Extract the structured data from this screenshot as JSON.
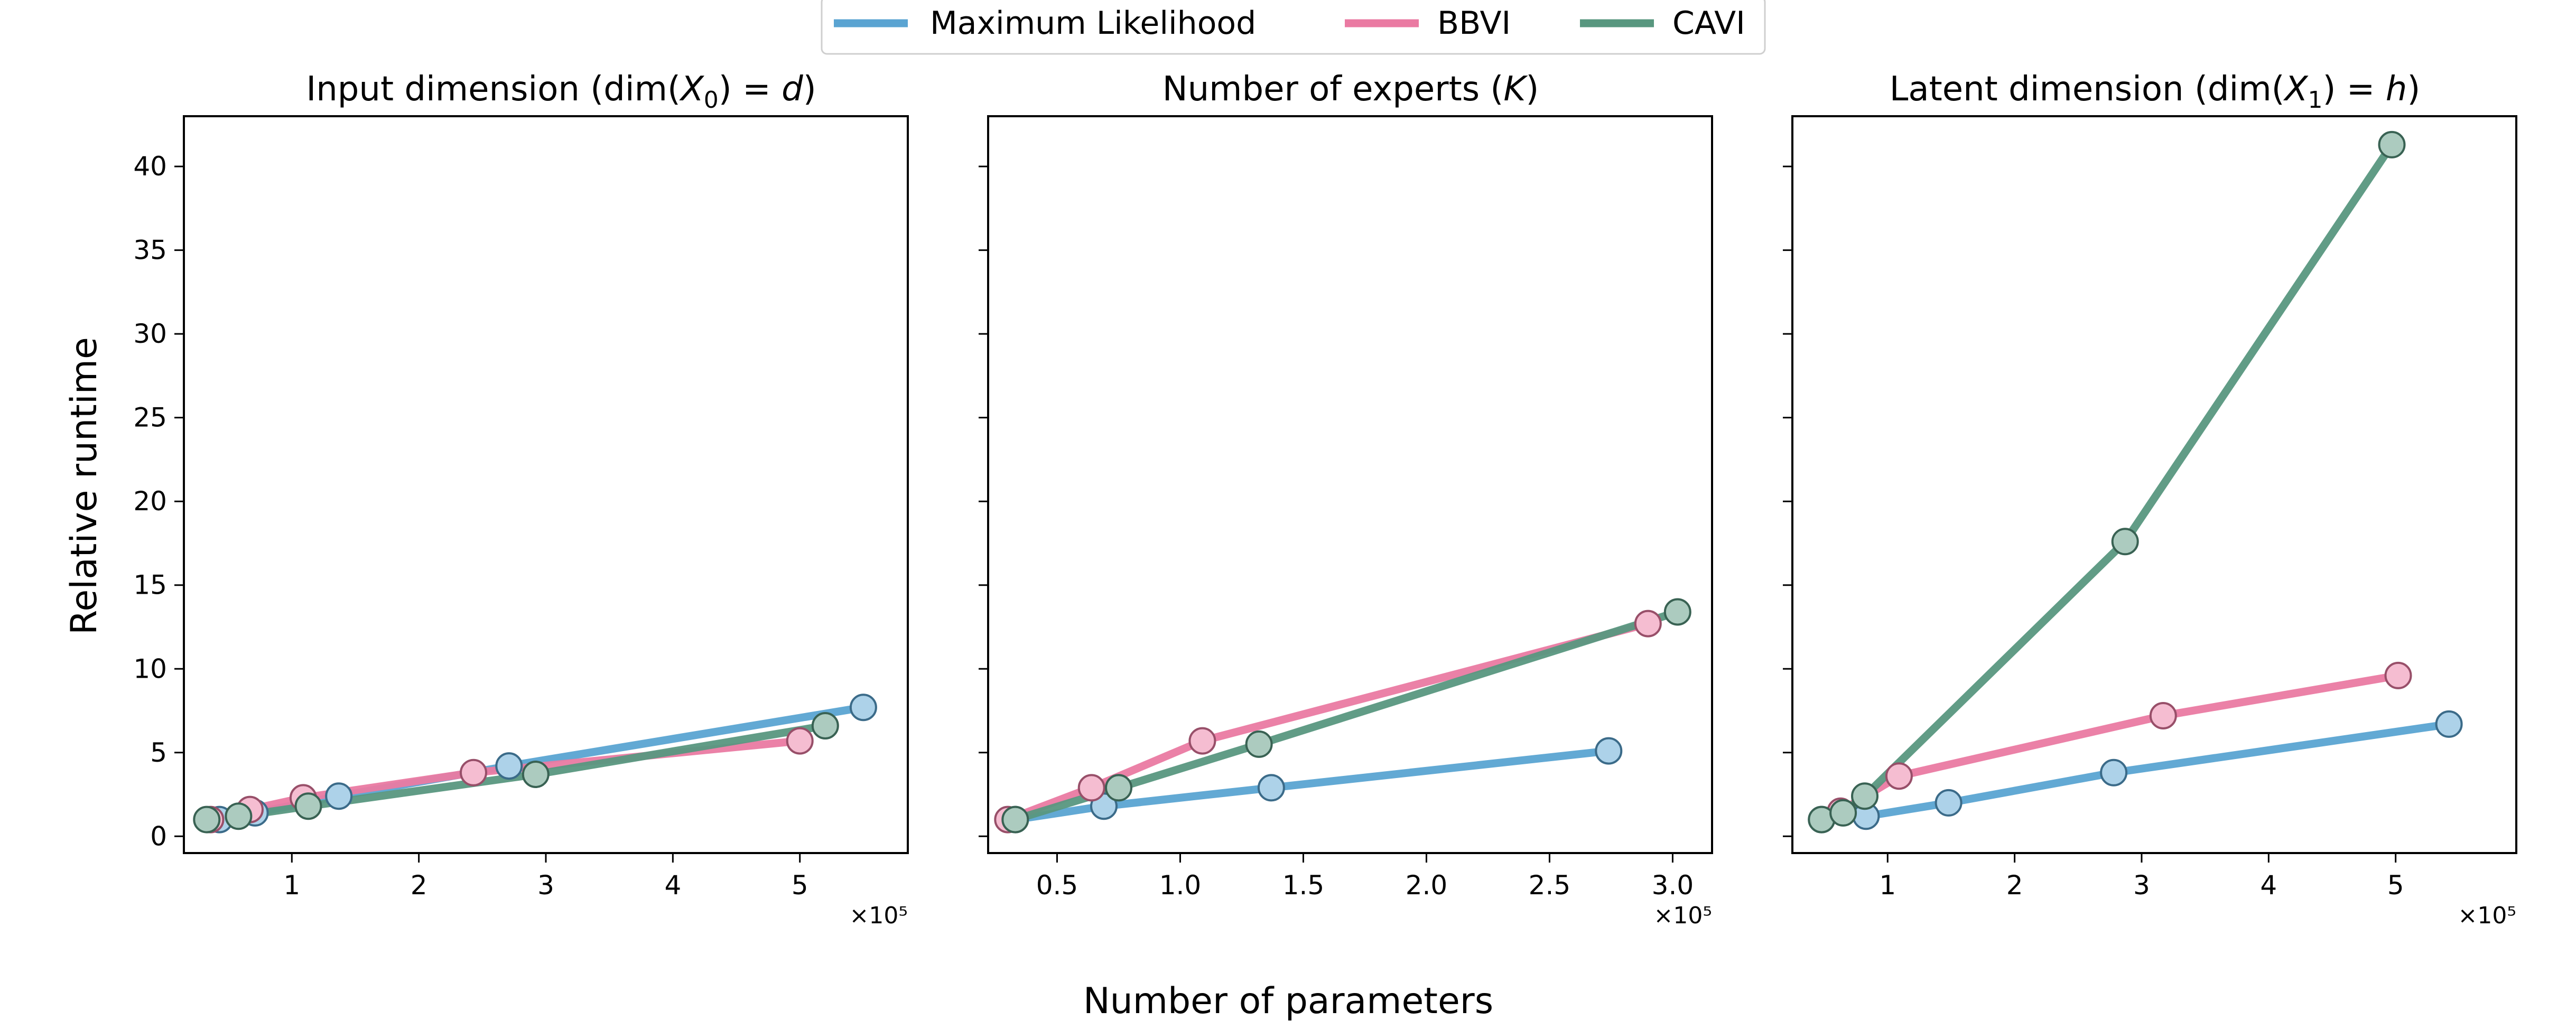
{
  "figure": {
    "ylabel": "Relative runtime",
    "xlabel": "Number of parameters",
    "legend_position": "top-center"
  },
  "legend": {
    "items": [
      {
        "label": "Maximum Likelihood",
        "color": "#5aa4d2"
      },
      {
        "label": "BBVI",
        "color": "#ea7aa2"
      },
      {
        "label": "CAVI",
        "color": "#58977f"
      }
    ]
  },
  "chart_data": [
    {
      "type": "line",
      "title_parts": {
        "prefix": "Input dimension (dim(",
        "sym": "X",
        "sub": "0",
        "suffix": ") = ",
        "var": "d",
        "end": ")"
      },
      "xlabel": "Number of parameters",
      "ylabel": "Relative runtime",
      "xlim": [
        0.15,
        5.85
      ],
      "ylim": [
        -1,
        43
      ],
      "x_ticks": [
        1,
        2,
        3,
        4,
        5
      ],
      "x_tick_labels": [
        "1",
        "2",
        "3",
        "4",
        "5"
      ],
      "y_ticks": [
        0,
        5,
        10,
        15,
        20,
        25,
        30,
        35,
        40
      ],
      "y_tick_labels": [
        "0",
        "5",
        "10",
        "15",
        "20",
        "25",
        "30",
        "35",
        "40"
      ],
      "x_offset_label": "×10⁵",
      "show_y_tick_labels": true,
      "series": [
        {
          "name": "Maximum Likelihood",
          "x": [
            0.43,
            0.71,
            1.37,
            2.71,
            5.5
          ],
          "y": [
            1.0,
            1.4,
            2.4,
            4.2,
            7.7
          ]
        },
        {
          "name": "BBVI",
          "x": [
            0.36,
            0.67,
            1.09,
            2.43,
            5.0
          ],
          "y": [
            1.0,
            1.6,
            2.3,
            3.8,
            5.7
          ]
        },
        {
          "name": "CAVI",
          "x": [
            0.33,
            0.58,
            1.13,
            2.92,
            5.2
          ],
          "y": [
            1.0,
            1.2,
            1.8,
            3.7,
            6.6
          ]
        }
      ]
    },
    {
      "type": "line",
      "title_parts": {
        "prefix": "Number of experts (",
        "sym": "",
        "sub": "",
        "suffix": "",
        "var": "K",
        "end": ")"
      },
      "xlabel": "Number of parameters",
      "ylabel": "Relative runtime",
      "xlim": [
        0.22,
        3.16
      ],
      "ylim": [
        -1,
        43
      ],
      "x_ticks": [
        0.5,
        1.0,
        1.5,
        2.0,
        2.5,
        3.0
      ],
      "x_tick_labels": [
        "0.5",
        "1.0",
        "1.5",
        "2.0",
        "2.5",
        "3.0"
      ],
      "y_ticks": [
        0,
        5,
        10,
        15,
        20,
        25,
        30,
        35,
        40
      ],
      "y_tick_labels": [
        "0",
        "5",
        "10",
        "15",
        "20",
        "25",
        "30",
        "35",
        "40"
      ],
      "x_offset_label": "×10⁵",
      "show_y_tick_labels": false,
      "series": [
        {
          "name": "Maximum Likelihood",
          "x": [
            0.33,
            0.69,
            1.37,
            2.74
          ],
          "y": [
            1.0,
            1.8,
            2.9,
            5.1
          ]
        },
        {
          "name": "BBVI",
          "x": [
            0.3,
            0.64,
            1.09,
            2.9
          ],
          "y": [
            1.0,
            2.9,
            5.7,
            12.7
          ]
        },
        {
          "name": "CAVI",
          "x": [
            0.33,
            0.75,
            1.32,
            3.02
          ],
          "y": [
            1.0,
            2.9,
            5.5,
            13.4
          ]
        }
      ]
    },
    {
      "type": "line",
      "title_parts": {
        "prefix": "Latent dimension (dim(",
        "sym": "X",
        "sub": "1",
        "suffix": ") = ",
        "var": "h",
        "end": ")"
      },
      "xlabel": "Number of parameters",
      "ylabel": "Relative runtime",
      "xlim": [
        0.25,
        5.95
      ],
      "ylim": [
        -1,
        43
      ],
      "x_ticks": [
        1,
        2,
        3,
        4,
        5
      ],
      "x_tick_labels": [
        "1",
        "2",
        "3",
        "4",
        "5"
      ],
      "y_ticks": [
        0,
        5,
        10,
        15,
        20,
        25,
        30,
        35,
        40
      ],
      "y_tick_labels": [
        "0",
        "5",
        "10",
        "15",
        "20",
        "25",
        "30",
        "35",
        "40"
      ],
      "x_offset_label": "×10⁵",
      "show_y_tick_labels": false,
      "series": [
        {
          "name": "Maximum Likelihood",
          "x": [
            0.48,
            0.83,
            1.48,
            2.78,
            5.42
          ],
          "y": [
            1.0,
            1.2,
            2.0,
            3.8,
            6.7
          ]
        },
        {
          "name": "BBVI",
          "x": [
            0.63,
            1.09,
            3.17,
            5.02
          ],
          "y": [
            1.5,
            3.6,
            7.2,
            9.6
          ]
        },
        {
          "name": "CAVI",
          "x": [
            0.48,
            0.65,
            0.82,
            2.87,
            4.97
          ],
          "y": [
            1.0,
            1.4,
            2.4,
            17.6,
            41.3
          ]
        }
      ]
    }
  ]
}
